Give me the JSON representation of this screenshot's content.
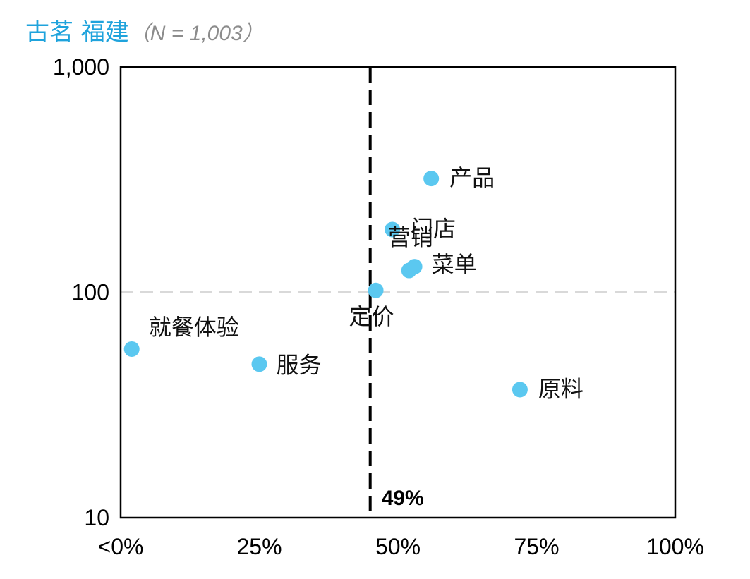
{
  "title": "古茗 福建",
  "subtitle": "（N = 1,003）",
  "chart_data": {
    "type": "scatter",
    "x_scale": "linear",
    "y_scale": "log",
    "xlim": [
      0,
      1
    ],
    "ylim": [
      10,
      1000
    ],
    "x_ticks": [
      "<0%",
      "25%",
      "50%",
      "75%",
      "100%"
    ],
    "y_ticks": [
      "1,000",
      "100",
      "10"
    ],
    "points": [
      {
        "label": "产品",
        "x": 0.56,
        "y": 320
      },
      {
        "label": "门店",
        "x": 0.49,
        "y": 190
      },
      {
        "label": "菜单",
        "x": 0.53,
        "y": 130
      },
      {
        "label": "营销",
        "x": 0.52,
        "y": 125
      },
      {
        "label": "定价",
        "x": 0.46,
        "y": 102
      },
      {
        "label": "就餐体验",
        "x": 0.02,
        "y": 56
      },
      {
        "label": "服务",
        "x": 0.25,
        "y": 48
      },
      {
        "label": "原料",
        "x": 0.72,
        "y": 37
      }
    ],
    "threshold_x": 0.45,
    "threshold_label": "49%",
    "reference_y": 100,
    "point_color": "#5bc8f0",
    "grid": false
  }
}
